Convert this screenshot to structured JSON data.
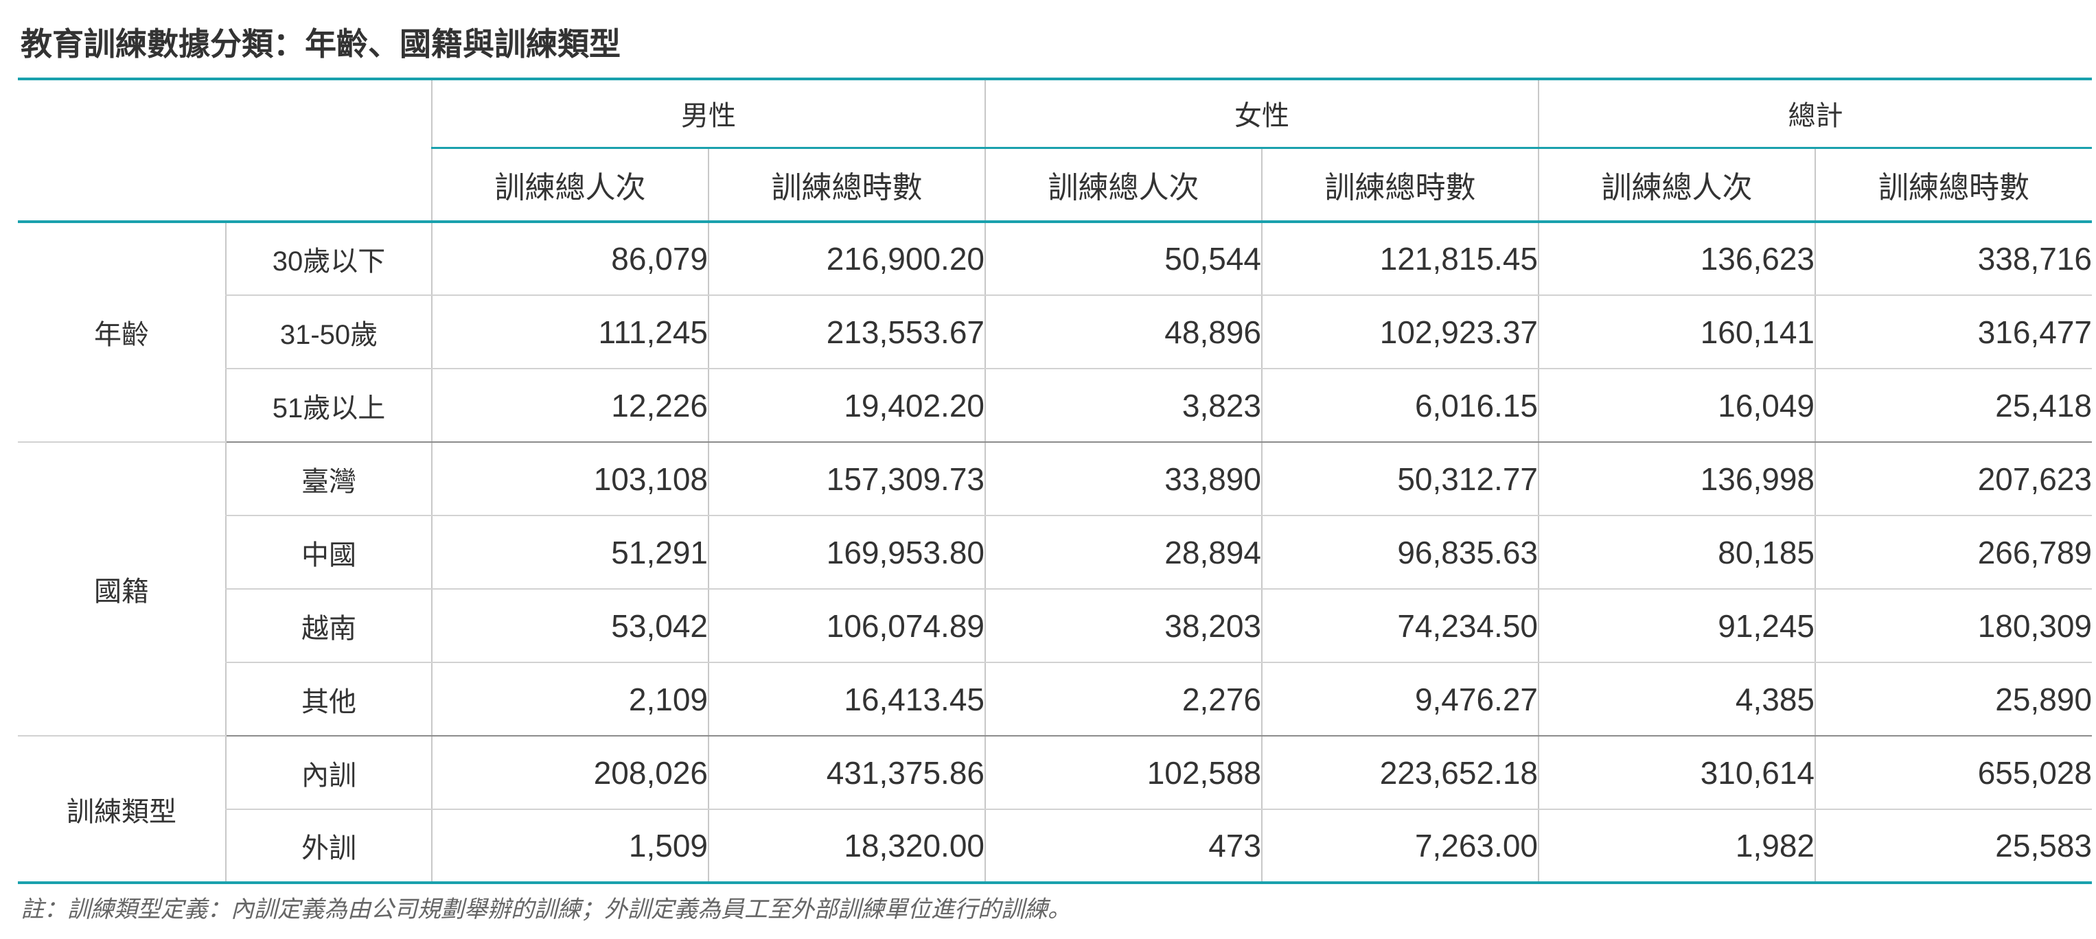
{
  "title": "教育訓練數據分類：年齡、國籍與訓練類型",
  "header": {
    "groups": [
      "男性",
      "女性",
      "總計"
    ],
    "sub": [
      "訓練總人次",
      "訓練總時數",
      "訓練總人次",
      "訓練總時數",
      "訓練總人次",
      "訓練總時數"
    ]
  },
  "groups": [
    {
      "label": "年齡",
      "rows": [
        {
          "label": "30歲以下",
          "values": [
            "86,079",
            "216,900.20",
            "50,544",
            "121,815.45",
            "136,623",
            "338,716"
          ]
        },
        {
          "label": "31-50歲",
          "values": [
            "111,245",
            "213,553.67",
            "48,896",
            "102,923.37",
            "160,141",
            "316,477"
          ]
        },
        {
          "label": "51歲以上",
          "values": [
            "12,226",
            "19,402.20",
            "3,823",
            "6,016.15",
            "16,049",
            "25,418"
          ]
        }
      ]
    },
    {
      "label": "國籍",
      "rows": [
        {
          "label": "臺灣",
          "values": [
            "103,108",
            "157,309.73",
            "33,890",
            "50,312.77",
            "136,998",
            "207,623"
          ]
        },
        {
          "label": "中國",
          "values": [
            "51,291",
            "169,953.80",
            "28,894",
            "96,835.63",
            "80,185",
            "266,789"
          ]
        },
        {
          "label": "越南",
          "values": [
            "53,042",
            "106,074.89",
            "38,203",
            "74,234.50",
            "91,245",
            "180,309"
          ]
        },
        {
          "label": "其他",
          "values": [
            "2,109",
            "16,413.45",
            "2,276",
            "9,476.27",
            "4,385",
            "25,890"
          ]
        }
      ]
    },
    {
      "label": "訓練類型",
      "rows": [
        {
          "label": "內訓",
          "values": [
            "208,026",
            "431,375.86",
            "102,588",
            "223,652.18",
            "310,614",
            "655,028"
          ]
        },
        {
          "label": "外訓",
          "values": [
            "1,509",
            "18,320.00",
            "473",
            "7,263.00",
            "1,982",
            "25,583"
          ]
        }
      ]
    }
  ],
  "note": "註：訓練類型定義：內訓定義為由公司規劃舉辦的訓練；外訓定義為員工至外部訓練單位進行的訓練。",
  "colors": {
    "accent": "#1aa1ad",
    "text": "#333333",
    "note": "#666666",
    "grid": "#c8c8c8"
  }
}
